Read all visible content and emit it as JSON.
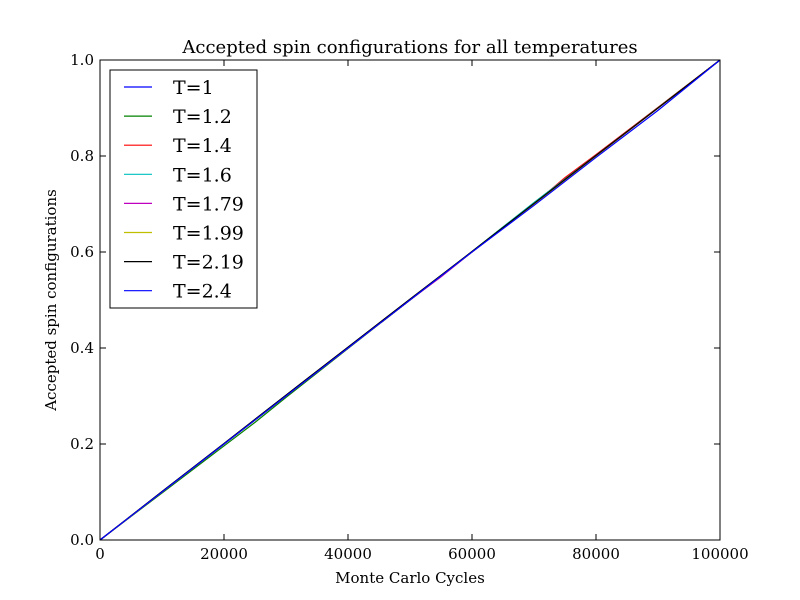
{
  "chart_data": {
    "type": "line",
    "title": "Accepted spin configurations for all temperatures",
    "xlabel": "Monte Carlo Cycles",
    "ylabel": "Accepted spin configurations",
    "xlim": [
      0,
      100000
    ],
    "ylim": [
      0.0,
      1.0
    ],
    "xticks": [
      "0",
      "20000",
      "40000",
      "60000",
      "80000",
      "100000"
    ],
    "yticks": [
      "0.0",
      "0.2",
      "0.4",
      "0.6",
      "0.8",
      "1.0"
    ],
    "grid": false,
    "legend_position": "top-left",
    "series": [
      {
        "name": "T=1",
        "color": "#0000ff",
        "points": [
          [
            0,
            0
          ],
          [
            10000,
            0.1
          ],
          [
            20000,
            0.2
          ],
          [
            30000,
            0.3
          ],
          [
            40000,
            0.4
          ],
          [
            50000,
            0.5
          ],
          [
            60000,
            0.6
          ],
          [
            70000,
            0.7
          ],
          [
            80000,
            0.8
          ],
          [
            90000,
            0.9
          ],
          [
            100000,
            1.0
          ]
        ]
      },
      {
        "name": "T=1.2",
        "color": "#008000",
        "points": [
          [
            0,
            0
          ],
          [
            10000,
            0.098
          ],
          [
            20000,
            0.196
          ],
          [
            25000,
            0.245
          ],
          [
            30000,
            0.297
          ],
          [
            40000,
            0.399
          ],
          [
            50000,
            0.5
          ],
          [
            60000,
            0.601
          ],
          [
            70000,
            0.703
          ],
          [
            80000,
            0.802
          ],
          [
            90000,
            0.901
          ],
          [
            100000,
            1.0
          ]
        ]
      },
      {
        "name": "T=1.4",
        "color": "#ff0000",
        "points": [
          [
            0,
            0
          ],
          [
            10000,
            0.1
          ],
          [
            20000,
            0.2
          ],
          [
            30000,
            0.3
          ],
          [
            40000,
            0.4
          ],
          [
            50000,
            0.5
          ],
          [
            60000,
            0.6
          ],
          [
            70000,
            0.7
          ],
          [
            75000,
            0.755
          ],
          [
            80000,
            0.803
          ],
          [
            90000,
            0.901
          ],
          [
            100000,
            1.0
          ]
        ]
      },
      {
        "name": "T=1.6",
        "color": "#00bfbf",
        "points": [
          [
            0,
            0
          ],
          [
            10000,
            0.1
          ],
          [
            20000,
            0.2
          ],
          [
            30000,
            0.3
          ],
          [
            40000,
            0.4
          ],
          [
            50000,
            0.5
          ],
          [
            60000,
            0.6
          ],
          [
            65000,
            0.652
          ],
          [
            70000,
            0.703
          ],
          [
            80000,
            0.801
          ],
          [
            90000,
            0.9
          ],
          [
            100000,
            1.0
          ]
        ]
      },
      {
        "name": "T=1.79",
        "color": "#bf00bf",
        "points": [
          [
            0,
            0
          ],
          [
            10000,
            0.1
          ],
          [
            20000,
            0.2
          ],
          [
            30000,
            0.3
          ],
          [
            40000,
            0.4
          ],
          [
            50000,
            0.5
          ],
          [
            55000,
            0.548
          ],
          [
            60000,
            0.6
          ],
          [
            70000,
            0.7
          ],
          [
            80000,
            0.8
          ],
          [
            90000,
            0.9
          ],
          [
            100000,
            1.0
          ]
        ]
      },
      {
        "name": "T=1.99",
        "color": "#bfbf00",
        "points": [
          [
            0,
            0
          ],
          [
            10000,
            0.1
          ],
          [
            20000,
            0.2
          ],
          [
            30000,
            0.3
          ],
          [
            40000,
            0.4
          ],
          [
            50000,
            0.5
          ],
          [
            60000,
            0.6
          ],
          [
            70000,
            0.7
          ],
          [
            80000,
            0.8
          ],
          [
            90000,
            0.9
          ],
          [
            100000,
            1.0
          ]
        ]
      },
      {
        "name": "T=2.19",
        "color": "#000000",
        "points": [
          [
            0,
            0
          ],
          [
            10000,
            0.101
          ],
          [
            20000,
            0.201
          ],
          [
            30000,
            0.302
          ],
          [
            40000,
            0.402
          ],
          [
            50000,
            0.502
          ],
          [
            60000,
            0.601
          ],
          [
            70000,
            0.701
          ],
          [
            80000,
            0.801
          ],
          [
            90000,
            0.9
          ],
          [
            100000,
            1.0
          ]
        ]
      },
      {
        "name": "T=2.4",
        "color": "#0000ff",
        "points": [
          [
            0,
            0
          ],
          [
            10000,
            0.1
          ],
          [
            20000,
            0.2
          ],
          [
            30000,
            0.3
          ],
          [
            40000,
            0.4
          ],
          [
            50000,
            0.5
          ],
          [
            60000,
            0.6
          ],
          [
            70000,
            0.697
          ],
          [
            80000,
            0.797
          ],
          [
            90000,
            0.895
          ],
          [
            100000,
            1.0
          ]
        ]
      }
    ]
  }
}
